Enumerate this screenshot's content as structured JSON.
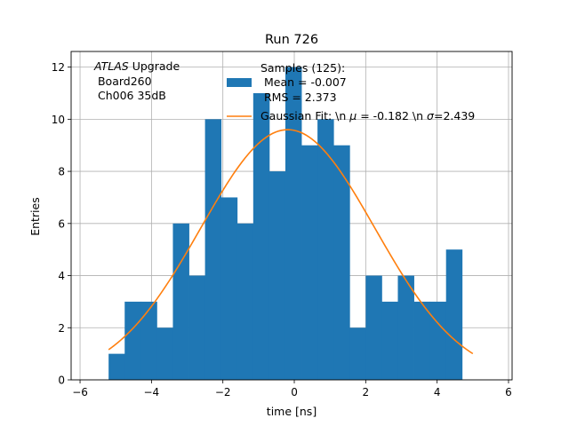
{
  "chart_data": {
    "type": "bar",
    "title": "Run 726",
    "xlabel": "time [ns]",
    "ylabel": "Entries",
    "xlim": [
      -6.25,
      6.1
    ],
    "ylim": [
      0,
      12.6
    ],
    "xticks": [
      -6,
      -4,
      -2,
      0,
      2,
      4,
      6
    ],
    "xtick_labels": [
      "−6",
      "−4",
      "−2",
      "0",
      "2",
      "4",
      "6"
    ],
    "yticks": [
      0,
      2,
      4,
      6,
      8,
      10,
      12
    ],
    "ytick_labels": [
      "0",
      "2",
      "4",
      "6",
      "8",
      "10",
      "12"
    ],
    "grid": true,
    "annotation": {
      "italic": "ATLAS",
      "rest": " Upgrade",
      "line2": " Board260",
      "line3": " Ch006 35dB"
    },
    "legend": {
      "position": "top-right",
      "hist_lines": [
        "Samples (125):",
        " Mean = -0.007",
        " RMS = 2.373"
      ],
      "fit_prefix": "Gaussian Fit: \\n ",
      "fit_mu_symbol": "μ",
      "fit_mid": " = -0.182 \\n ",
      "fit_sigma_symbol": "σ",
      "fit_suffix": "=2.439"
    },
    "histogram": {
      "bin_edges": [
        -5.2,
        -4.75,
        -4.3,
        -3.85,
        -3.4,
        -2.95,
        -2.5,
        -2.05,
        -1.6,
        -1.15,
        -0.7,
        -0.25,
        0.2,
        0.65,
        1.1,
        1.55,
        2.0,
        2.45,
        2.9,
        3.35,
        3.8,
        4.25,
        4.7
      ],
      "counts": [
        1,
        3,
        3,
        2,
        6,
        4,
        10,
        7,
        6,
        11,
        8,
        12,
        9,
        10,
        9,
        2,
        4,
        3,
        4,
        3,
        3,
        5
      ],
      "color": "#1f77b4",
      "right_edge": 5.05
    },
    "fit": {
      "mu": -0.182,
      "sigma": 2.439,
      "amplitude": 9.6,
      "x_range": [
        -5.2,
        5.0
      ],
      "color": "#ff7f0e"
    }
  }
}
